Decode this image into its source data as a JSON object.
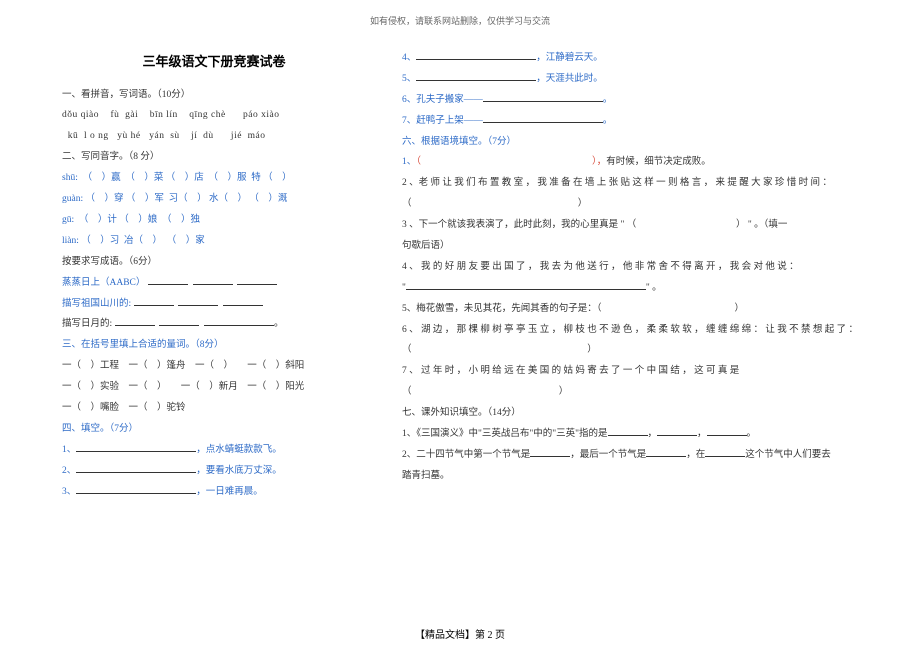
{
  "header_note": "如有侵权，请联系网站删除，仅供学习与交流",
  "title": "三年级语文下册竞赛试卷",
  "left": {
    "sec1_head": "一、看拼音，写词语。（10分）",
    "pinyin1": "dǒu qiào    fù  gài    bīn lín    qīng chè      páo xiào",
    "pinyin2": "  kū  l o ng   yù hé   yán  sù    jí  dù      jié  máo",
    "sec2_head": "二、写同音字。（8 分）",
    "sho_row": "shū:  （    ）赢  （    ）菜 （    ）店  （    ）服  特 （    ）",
    "guan_row": "guàn: （    ）穿 （    ）军  习（    ） 水（    ） （    ）溉",
    "gu_row": "gū:  （    ）计 （    ）娘  （    ）独",
    "lian_row": "liàn: （    ）习  冶（    ）  （    ）家",
    "sec3_head": "按要求写成语。（6分）",
    "aabc": "蒸蒸日上（AABC）",
    "shanchuankou": "描写祖国山川的:",
    "riyuekou": "描写日月的:",
    "sec4_head": "三、在括号里填上合适的量词。（8分）",
    "mw1": "一（    ）工程    一（    ）篷舟    一（    ）      一（    ）斜阳",
    "mw2": "一（    ）实验    一（    ）      一（    ）新月    一（    ）阳光",
    "mw3": "一（    ）嘴脸    一（    ）驼铃",
    "sec5_head": "四、填空。（7分）",
    "fill1": "1、",
    "fill1_tail": "，点水蜻蜓款款飞。",
    "fill2": "2、",
    "fill2_tail": "，要看水底万丈深。",
    "fill3": "3、",
    "fill3_tail": "，一日难再晨。"
  },
  "right": {
    "fill4": "4、",
    "fill4_tail": "，江静碧云天。",
    "fill5": "5、",
    "fill5_tail": "，天涯共此时。",
    "fill6": "6、孔夫子搬家——",
    "fill7": "7、赶鸭子上架——",
    "sec6_head": "六、根据语境填空。（7分）",
    "q1": "1、（                                              ），有时候，细节决定成败。",
    "q2": "2 、老 师 让 我 们 布 置 教 室 ， 我 准 备 在 墙 上 张 贴 这 样 一 则 格 言 ， 来 提 醒 大 家 珍 惜 时 间 ：",
    "q2_cont": "（                                                                      ）",
    "q3": "3 、下一个就该我表演了，此时此刻，我的心里真是 \" （                                          ） \" 。（填一",
    "q3_cont": "句歇后语）",
    "q4": "4 、 我 的 好 朋 友 要 出 国 了 ， 我 去 为 他 送 行 ， 他 非 常 舍 不 得 离 开 ， 我 会 对 他 说 ：",
    "q4_cont": "\"",
    "q4_cont_tail": "\" 。",
    "q5": "5、梅花傲雪，未见其花，先闻其香的句子是：（                                                        ）",
    "q6": "6 、 湖 边 ， 那 棵 柳 树 亭 亭 玉 立 ， 柳 枝 也 不 逊 色 ， 柔 柔 软 软 ， 缠 缠 绵 绵 ： 让 我 不 禁 想 起 了 ：",
    "q6_cont": "（                                                                          ）",
    "q7": "7 、 过 年 时 ， 小 明 给 远 在 美 国 的 姑 妈 寄 去 了 一 个 中 国 结 ， 这 可 真 是",
    "q7_cont": "（                                                              ）",
    "sec7_head": "七、课外知识填空。（14分）",
    "k1": "1、《三国演义》中\"三英战吕布\"中的\"三英\"指的是",
    "k1_tail": "。",
    "k2_a": "2、二十四节气中第一个节气是",
    "k2_b": "，最后一个节气是",
    "k2_c": "，在",
    "k2_d": "这个节气中人们要去",
    "k2_e": "踏青扫墓。"
  },
  "footer": "【精品文档】第 2 页"
}
